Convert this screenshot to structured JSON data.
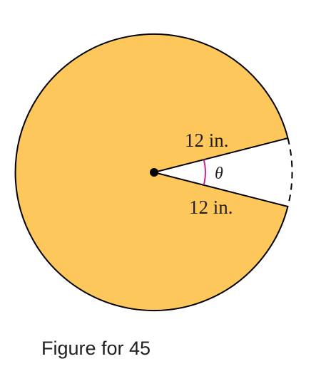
{
  "figure": {
    "radius_label_upper": "12 in.",
    "radius_label_lower": "12 in.",
    "angle_label": "θ",
    "colors": {
      "sector_fill": "#fdc75b",
      "outline": "#000000",
      "angle_arc": "#c4268c",
      "text": "#231f20"
    }
  },
  "caption": {
    "text": "Figure for 45"
  }
}
